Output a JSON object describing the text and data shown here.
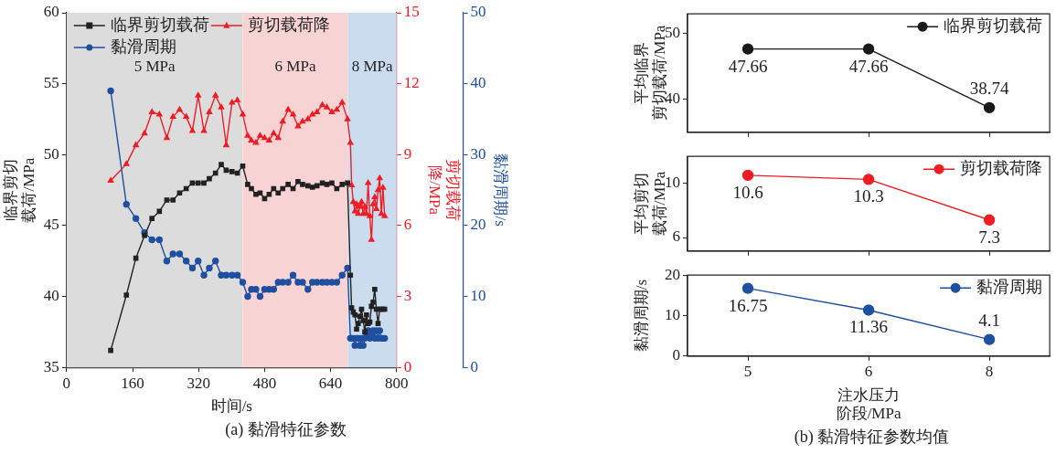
{
  "chart_data": [
    {
      "type": "line",
      "xlabel": "时间/s",
      "ylabel": "临界剪切载荷/MPa",
      "y2label": "剪切载荷降/MPa",
      "y3label": "黏滑周期/s",
      "annotations": [
        "(a) 黏滑特征参数"
      ],
      "x": [
        107,
        145,
        168,
        189,
        207,
        225,
        243,
        258,
        274,
        290,
        305,
        319,
        333,
        346,
        361,
        375,
        387,
        401,
        414,
        427,
        439,
        448,
        459,
        469,
        480,
        491,
        502,
        513,
        524,
        537,
        549,
        561,
        572,
        585,
        596,
        607,
        620,
        631,
        643,
        655,
        668,
        681,
        688,
        691,
        695,
        699,
        703,
        707,
        711,
        715,
        719,
        723,
        727,
        731,
        735,
        739,
        743,
        747,
        751,
        755,
        759,
        763,
        767,
        771
      ],
      "xlim": [
        0,
        800
      ],
      "xticks": [
        0,
        160,
        320,
        480,
        640,
        800
      ],
      "ylim": [
        35,
        60
      ],
      "yticks": [
        35,
        40,
        45,
        50,
        55,
        60
      ],
      "y2lim": [
        0,
        15
      ],
      "y2ticks": [
        0,
        3,
        6,
        9,
        12,
        15
      ],
      "y3lim": [
        0,
        50
      ],
      "y3ticks": [
        0,
        10,
        20,
        30,
        40,
        50
      ],
      "bands": [
        {
          "axis": "x",
          "from": 0,
          "to": 427,
          "label": "5 MPa",
          "color": "#dcdcdc"
        },
        {
          "axis": "x",
          "from": 427,
          "to": 682,
          "label": "6 MPa",
          "color": "#f8d3d4"
        },
        {
          "axis": "x",
          "from": 682,
          "to": 800,
          "label": "8 MPa",
          "color": "#cadcee"
        }
      ],
      "series": [
        {
          "name": "临界剪切载荷",
          "color": "#222222",
          "marker": "square",
          "axis": "y",
          "values": [
            36.2,
            40.1,
            42.7,
            44.3,
            45.5,
            46.0,
            46.8,
            46.8,
            47.3,
            47.6,
            48.0,
            48.0,
            48.0,
            48.3,
            48.7,
            49.3,
            48.9,
            48.8,
            48.7,
            49.2,
            47.9,
            47.6,
            47.2,
            47.3,
            46.9,
            47.2,
            47.6,
            47.3,
            47.6,
            47.9,
            47.6,
            48.1,
            47.9,
            47.8,
            47.7,
            47.8,
            48.0,
            47.9,
            48.0,
            47.6,
            47.9,
            48.0,
            41.5,
            39.2,
            38.9,
            38.7,
            37.7,
            38.1,
            38.6,
            39.1,
            38.3,
            37.5,
            38.7,
            38.1,
            38.2,
            39.3,
            39.6,
            40.5,
            39.1,
            38.1,
            39.1,
            39.1,
            39.1,
            39.1
          ]
        },
        {
          "name": "剪切载荷降",
          "color": "#ee1c25",
          "marker": "triangle",
          "axis": "y2",
          "values": [
            7.9,
            8.6,
            9.4,
            9.9,
            10.8,
            10.7,
            9.7,
            10.6,
            10.9,
            10.6,
            10.0,
            11.5,
            10.0,
            10.8,
            11.5,
            11.0,
            9.4,
            11.2,
            11.3,
            10.7,
            9.8,
            9.6,
            9.5,
            9.8,
            9.7,
            9.6,
            9.9,
            9.7,
            10.4,
            10.9,
            10.7,
            10.2,
            10.4,
            10.5,
            10.7,
            10.8,
            11.1,
            11.0,
            10.8,
            10.9,
            11.2,
            10.5,
            9.5,
            7.7,
            7.0,
            6.6,
            6.9,
            6.5,
            6.8,
            7.0,
            6.5,
            6.8,
            6.5,
            7.8,
            6.4,
            5.4,
            6.9,
            7.2,
            6.7,
            7.5,
            8.0,
            6.5,
            7.6,
            6.4
          ]
        },
        {
          "name": "黏滑周期",
          "color": "#1f4fa0",
          "marker": "circle",
          "axis": "y3",
          "values": [
            39.0,
            23.0,
            21.0,
            19.0,
            18.0,
            18.0,
            15.0,
            16.0,
            16.0,
            15.0,
            14.0,
            15.0,
            13.0,
            14.0,
            15.0,
            13.0,
            13.0,
            13.0,
            13.0,
            12.0,
            10,
            11,
            11,
            10,
            11,
            11,
            11,
            12,
            12,
            12,
            13,
            12,
            12,
            11,
            12,
            12,
            12,
            12,
            12,
            12,
            13,
            14,
            4.1,
            4.1,
            4.1,
            3.1,
            4.1,
            4.1,
            3.1,
            4.1,
            3.1,
            4.1,
            4.8,
            5.2,
            4.1,
            4.8,
            5.2,
            4.1,
            5.2,
            4.1,
            5.2,
            4.1,
            4.1,
            4.1
          ]
        }
      ],
      "legend": "top left"
    },
    {
      "type": "line",
      "ylabel": "平均临界剪切载荷/MPa",
      "categories": [
        "5",
        "6",
        "8"
      ],
      "ylim": [
        35,
        53
      ],
      "yticks": [
        40,
        50
      ],
      "tick_labels": "y",
      "marker": "circle",
      "data_labels": true,
      "legend": "top right",
      "series": [
        {
          "name": "临界剪切载荷",
          "color": "#1a1a1a",
          "values": [
            47.66,
            47.66,
            38.74
          ]
        }
      ]
    },
    {
      "type": "line",
      "ylabel": "平均剪切载荷/MPa",
      "categories": [
        "5",
        "6",
        "8"
      ],
      "ylim": [
        5,
        12
      ],
      "yticks": [
        6,
        10
      ],
      "tick_labels": "y",
      "marker": "circle",
      "data_labels": true,
      "legend": "top right",
      "series": [
        {
          "name": "剪切载荷降",
          "color": "#ee1c25",
          "values": [
            10.6,
            10.3,
            7.3
          ]
        }
      ]
    },
    {
      "type": "line",
      "ylabel": "黏滑周期/s",
      "xlabel": "注水压力阶段/MPa",
      "categories": [
        "5",
        "6",
        "8"
      ],
      "ylim": [
        0,
        20
      ],
      "yticks": [
        0,
        10,
        20
      ],
      "marker": "circle",
      "data_labels": true,
      "legend": "top right",
      "annotations": [
        "(b) 黏滑特征参数均值"
      ],
      "series": [
        {
          "name": "黏滑周期",
          "color": "#1f4fa0",
          "values": [
            16.75,
            11.36,
            4.1
          ]
        }
      ]
    }
  ]
}
